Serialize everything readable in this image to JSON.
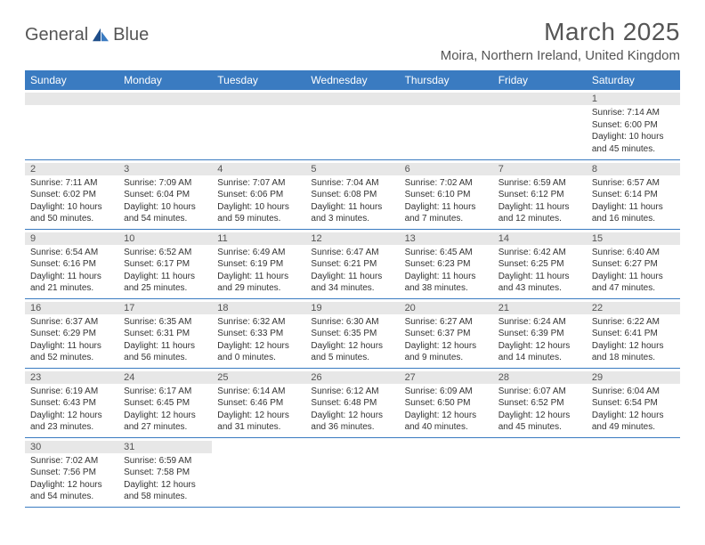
{
  "brand": {
    "name_part1": "General",
    "name_part2": "Blue"
  },
  "title": "March 2025",
  "location": "Moira, Northern Ireland, United Kingdom",
  "colors": {
    "header_bg": "#3a7bc1",
    "header_text": "#ffffff",
    "daynum_bg": "#e7e7e7",
    "text": "#333333",
    "brand_gray": "#555555",
    "brand_blue": "#2b6fb5"
  },
  "weekdays": [
    "Sunday",
    "Monday",
    "Tuesday",
    "Wednesday",
    "Thursday",
    "Friday",
    "Saturday"
  ],
  "weeks": [
    [
      null,
      null,
      null,
      null,
      null,
      null,
      {
        "n": "1",
        "sunrise": "Sunrise: 7:14 AM",
        "sunset": "Sunset: 6:00 PM",
        "daylight1": "Daylight: 10 hours",
        "daylight2": "and 45 minutes."
      }
    ],
    [
      {
        "n": "2",
        "sunrise": "Sunrise: 7:11 AM",
        "sunset": "Sunset: 6:02 PM",
        "daylight1": "Daylight: 10 hours",
        "daylight2": "and 50 minutes."
      },
      {
        "n": "3",
        "sunrise": "Sunrise: 7:09 AM",
        "sunset": "Sunset: 6:04 PM",
        "daylight1": "Daylight: 10 hours",
        "daylight2": "and 54 minutes."
      },
      {
        "n": "4",
        "sunrise": "Sunrise: 7:07 AM",
        "sunset": "Sunset: 6:06 PM",
        "daylight1": "Daylight: 10 hours",
        "daylight2": "and 59 minutes."
      },
      {
        "n": "5",
        "sunrise": "Sunrise: 7:04 AM",
        "sunset": "Sunset: 6:08 PM",
        "daylight1": "Daylight: 11 hours",
        "daylight2": "and 3 minutes."
      },
      {
        "n": "6",
        "sunrise": "Sunrise: 7:02 AM",
        "sunset": "Sunset: 6:10 PM",
        "daylight1": "Daylight: 11 hours",
        "daylight2": "and 7 minutes."
      },
      {
        "n": "7",
        "sunrise": "Sunrise: 6:59 AM",
        "sunset": "Sunset: 6:12 PM",
        "daylight1": "Daylight: 11 hours",
        "daylight2": "and 12 minutes."
      },
      {
        "n": "8",
        "sunrise": "Sunrise: 6:57 AM",
        "sunset": "Sunset: 6:14 PM",
        "daylight1": "Daylight: 11 hours",
        "daylight2": "and 16 minutes."
      }
    ],
    [
      {
        "n": "9",
        "sunrise": "Sunrise: 6:54 AM",
        "sunset": "Sunset: 6:16 PM",
        "daylight1": "Daylight: 11 hours",
        "daylight2": "and 21 minutes."
      },
      {
        "n": "10",
        "sunrise": "Sunrise: 6:52 AM",
        "sunset": "Sunset: 6:17 PM",
        "daylight1": "Daylight: 11 hours",
        "daylight2": "and 25 minutes."
      },
      {
        "n": "11",
        "sunrise": "Sunrise: 6:49 AM",
        "sunset": "Sunset: 6:19 PM",
        "daylight1": "Daylight: 11 hours",
        "daylight2": "and 29 minutes."
      },
      {
        "n": "12",
        "sunrise": "Sunrise: 6:47 AM",
        "sunset": "Sunset: 6:21 PM",
        "daylight1": "Daylight: 11 hours",
        "daylight2": "and 34 minutes."
      },
      {
        "n": "13",
        "sunrise": "Sunrise: 6:45 AM",
        "sunset": "Sunset: 6:23 PM",
        "daylight1": "Daylight: 11 hours",
        "daylight2": "and 38 minutes."
      },
      {
        "n": "14",
        "sunrise": "Sunrise: 6:42 AM",
        "sunset": "Sunset: 6:25 PM",
        "daylight1": "Daylight: 11 hours",
        "daylight2": "and 43 minutes."
      },
      {
        "n": "15",
        "sunrise": "Sunrise: 6:40 AM",
        "sunset": "Sunset: 6:27 PM",
        "daylight1": "Daylight: 11 hours",
        "daylight2": "and 47 minutes."
      }
    ],
    [
      {
        "n": "16",
        "sunrise": "Sunrise: 6:37 AM",
        "sunset": "Sunset: 6:29 PM",
        "daylight1": "Daylight: 11 hours",
        "daylight2": "and 52 minutes."
      },
      {
        "n": "17",
        "sunrise": "Sunrise: 6:35 AM",
        "sunset": "Sunset: 6:31 PM",
        "daylight1": "Daylight: 11 hours",
        "daylight2": "and 56 minutes."
      },
      {
        "n": "18",
        "sunrise": "Sunrise: 6:32 AM",
        "sunset": "Sunset: 6:33 PM",
        "daylight1": "Daylight: 12 hours",
        "daylight2": "and 0 minutes."
      },
      {
        "n": "19",
        "sunrise": "Sunrise: 6:30 AM",
        "sunset": "Sunset: 6:35 PM",
        "daylight1": "Daylight: 12 hours",
        "daylight2": "and 5 minutes."
      },
      {
        "n": "20",
        "sunrise": "Sunrise: 6:27 AM",
        "sunset": "Sunset: 6:37 PM",
        "daylight1": "Daylight: 12 hours",
        "daylight2": "and 9 minutes."
      },
      {
        "n": "21",
        "sunrise": "Sunrise: 6:24 AM",
        "sunset": "Sunset: 6:39 PM",
        "daylight1": "Daylight: 12 hours",
        "daylight2": "and 14 minutes."
      },
      {
        "n": "22",
        "sunrise": "Sunrise: 6:22 AM",
        "sunset": "Sunset: 6:41 PM",
        "daylight1": "Daylight: 12 hours",
        "daylight2": "and 18 minutes."
      }
    ],
    [
      {
        "n": "23",
        "sunrise": "Sunrise: 6:19 AM",
        "sunset": "Sunset: 6:43 PM",
        "daylight1": "Daylight: 12 hours",
        "daylight2": "and 23 minutes."
      },
      {
        "n": "24",
        "sunrise": "Sunrise: 6:17 AM",
        "sunset": "Sunset: 6:45 PM",
        "daylight1": "Daylight: 12 hours",
        "daylight2": "and 27 minutes."
      },
      {
        "n": "25",
        "sunrise": "Sunrise: 6:14 AM",
        "sunset": "Sunset: 6:46 PM",
        "daylight1": "Daylight: 12 hours",
        "daylight2": "and 31 minutes."
      },
      {
        "n": "26",
        "sunrise": "Sunrise: 6:12 AM",
        "sunset": "Sunset: 6:48 PM",
        "daylight1": "Daylight: 12 hours",
        "daylight2": "and 36 minutes."
      },
      {
        "n": "27",
        "sunrise": "Sunrise: 6:09 AM",
        "sunset": "Sunset: 6:50 PM",
        "daylight1": "Daylight: 12 hours",
        "daylight2": "and 40 minutes."
      },
      {
        "n": "28",
        "sunrise": "Sunrise: 6:07 AM",
        "sunset": "Sunset: 6:52 PM",
        "daylight1": "Daylight: 12 hours",
        "daylight2": "and 45 minutes."
      },
      {
        "n": "29",
        "sunrise": "Sunrise: 6:04 AM",
        "sunset": "Sunset: 6:54 PM",
        "daylight1": "Daylight: 12 hours",
        "daylight2": "and 49 minutes."
      }
    ],
    [
      {
        "n": "30",
        "sunrise": "Sunrise: 7:02 AM",
        "sunset": "Sunset: 7:56 PM",
        "daylight1": "Daylight: 12 hours",
        "daylight2": "and 54 minutes."
      },
      {
        "n": "31",
        "sunrise": "Sunrise: 6:59 AM",
        "sunset": "Sunset: 7:58 PM",
        "daylight1": "Daylight: 12 hours",
        "daylight2": "and 58 minutes."
      },
      null,
      null,
      null,
      null,
      null
    ]
  ]
}
